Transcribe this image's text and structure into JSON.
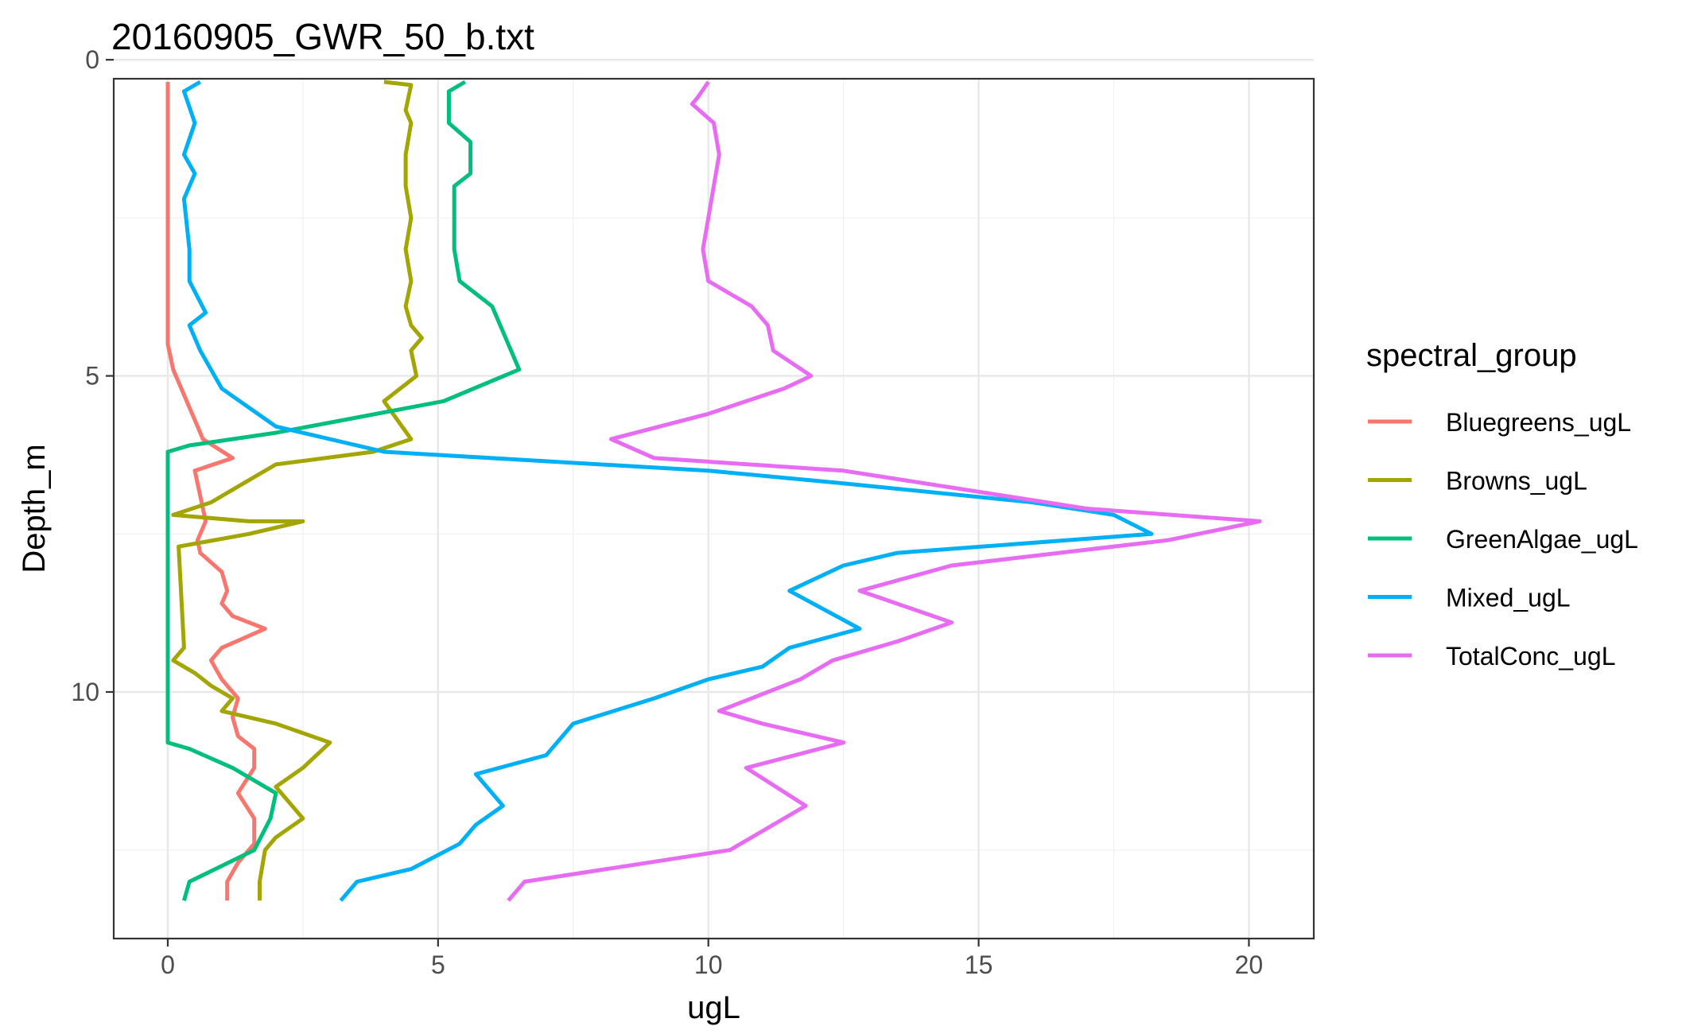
{
  "chart_data": {
    "type": "line",
    "title": "20160905_GWR_50_b.txt",
    "xlabel": "ugL",
    "ylabel": "Depth_m",
    "xlim": [
      -1,
      21.2
    ],
    "ylim": [
      0.3,
      13.9
    ],
    "y_reversed": true,
    "x_ticks": [
      0,
      5,
      10,
      15,
      20
    ],
    "y_ticks": [
      0,
      5,
      10
    ],
    "grid": true,
    "legend": {
      "title": "spectral_group",
      "placement": "right"
    },
    "series": [
      {
        "name": "Bluegreens_ugL",
        "color": "#F8766D",
        "points": [
          [
            0,
            0.35
          ],
          [
            0,
            1.5
          ],
          [
            0,
            3.0
          ],
          [
            0,
            4.5
          ],
          [
            0.1,
            4.9
          ],
          [
            0.3,
            5.3
          ],
          [
            0.5,
            5.7
          ],
          [
            0.65,
            6.0
          ],
          [
            1.2,
            6.3
          ],
          [
            0.5,
            6.5
          ],
          [
            0.6,
            6.9
          ],
          [
            0.7,
            7.3
          ],
          [
            0.55,
            7.6
          ],
          [
            0.6,
            7.8
          ],
          [
            1.0,
            8.1
          ],
          [
            1.1,
            8.4
          ],
          [
            1.0,
            8.6
          ],
          [
            1.2,
            8.8
          ],
          [
            1.8,
            9.0
          ],
          [
            1.0,
            9.3
          ],
          [
            0.8,
            9.5
          ],
          [
            1.0,
            9.8
          ],
          [
            1.3,
            10.1
          ],
          [
            1.2,
            10.4
          ],
          [
            1.3,
            10.7
          ],
          [
            1.6,
            10.9
          ],
          [
            1.6,
            11.2
          ],
          [
            1.3,
            11.6
          ],
          [
            1.6,
            12.0
          ],
          [
            1.6,
            12.4
          ],
          [
            1.3,
            12.7
          ],
          [
            1.1,
            13.0
          ],
          [
            1.1,
            13.3
          ]
        ]
      },
      {
        "name": "Browns_ugL",
        "color": "#A3A500",
        "points": [
          [
            4.0,
            0.35
          ],
          [
            4.5,
            0.4
          ],
          [
            4.4,
            0.8
          ],
          [
            4.5,
            1.0
          ],
          [
            4.4,
            1.5
          ],
          [
            4.4,
            2.0
          ],
          [
            4.5,
            2.5
          ],
          [
            4.4,
            3.0
          ],
          [
            4.5,
            3.5
          ],
          [
            4.4,
            3.9
          ],
          [
            4.5,
            4.2
          ],
          [
            4.7,
            4.4
          ],
          [
            4.5,
            4.6
          ],
          [
            4.6,
            5.0
          ],
          [
            4.0,
            5.4
          ],
          [
            4.5,
            6.0
          ],
          [
            3.8,
            6.2
          ],
          [
            2.0,
            6.4
          ],
          [
            1.2,
            6.8
          ],
          [
            0.8,
            7.0
          ],
          [
            0.1,
            7.2
          ],
          [
            1.5,
            7.3
          ],
          [
            2.5,
            7.3
          ],
          [
            1.5,
            7.5
          ],
          [
            0.2,
            7.7
          ],
          [
            0.3,
            9.3
          ],
          [
            0.1,
            9.5
          ],
          [
            0.5,
            9.7
          ],
          [
            0.8,
            9.9
          ],
          [
            1.2,
            10.1
          ],
          [
            1.0,
            10.3
          ],
          [
            2.0,
            10.5
          ],
          [
            3.0,
            10.8
          ],
          [
            2.5,
            11.2
          ],
          [
            2.0,
            11.5
          ],
          [
            2.5,
            12.0
          ],
          [
            2.0,
            12.3
          ],
          [
            1.8,
            12.5
          ],
          [
            1.7,
            13.0
          ],
          [
            1.7,
            13.3
          ]
        ]
      },
      {
        "name": "GreenAlgae_ugL",
        "color": "#00BF7D",
        "points": [
          [
            5.5,
            0.35
          ],
          [
            5.2,
            0.5
          ],
          [
            5.2,
            1.0
          ],
          [
            5.6,
            1.3
          ],
          [
            5.6,
            1.8
          ],
          [
            5.3,
            2.0
          ],
          [
            5.3,
            2.5
          ],
          [
            5.3,
            3.0
          ],
          [
            5.4,
            3.5
          ],
          [
            6.0,
            3.9
          ],
          [
            6.2,
            4.3
          ],
          [
            6.5,
            4.9
          ],
          [
            5.1,
            5.4
          ],
          [
            2.0,
            5.9
          ],
          [
            0.4,
            6.1
          ],
          [
            0,
            6.2
          ],
          [
            0,
            7.0
          ],
          [
            0,
            9.0
          ],
          [
            0,
            10.8
          ],
          [
            0.4,
            10.9
          ],
          [
            1.2,
            11.2
          ],
          [
            2.0,
            11.6
          ],
          [
            1.9,
            12.0
          ],
          [
            1.6,
            12.5
          ],
          [
            0.4,
            13.0
          ],
          [
            0.3,
            13.3
          ]
        ]
      },
      {
        "name": "Mixed_ugL",
        "color": "#00B0F6",
        "points": [
          [
            0.6,
            0.35
          ],
          [
            0.3,
            0.5
          ],
          [
            0.5,
            1.0
          ],
          [
            0.3,
            1.5
          ],
          [
            0.5,
            1.8
          ],
          [
            0.3,
            2.2
          ],
          [
            0.4,
            3.0
          ],
          [
            0.4,
            3.5
          ],
          [
            0.7,
            4.0
          ],
          [
            0.4,
            4.2
          ],
          [
            0.6,
            4.6
          ],
          [
            1.0,
            5.2
          ],
          [
            2.0,
            5.8
          ],
          [
            4.0,
            6.2
          ],
          [
            10.0,
            6.5
          ],
          [
            12.5,
            6.7
          ],
          [
            16.0,
            7.0
          ],
          [
            17.5,
            7.2
          ],
          [
            18.2,
            7.5
          ],
          [
            13.5,
            7.8
          ],
          [
            12.5,
            8.0
          ],
          [
            11.5,
            8.4
          ],
          [
            12.8,
            9.0
          ],
          [
            11.5,
            9.3
          ],
          [
            11.0,
            9.6
          ],
          [
            10.0,
            9.8
          ],
          [
            9.0,
            10.1
          ],
          [
            7.5,
            10.5
          ],
          [
            7.0,
            11.0
          ],
          [
            5.7,
            11.3
          ],
          [
            6.2,
            11.8
          ],
          [
            5.7,
            12.1
          ],
          [
            5.4,
            12.4
          ],
          [
            4.5,
            12.8
          ],
          [
            3.5,
            13.0
          ],
          [
            3.2,
            13.3
          ]
        ]
      },
      {
        "name": "TotalConc_ugL",
        "color": "#E76BF3",
        "points": [
          [
            10.0,
            0.35
          ],
          [
            9.8,
            0.6
          ],
          [
            9.7,
            0.7
          ],
          [
            10.1,
            1.0
          ],
          [
            10.2,
            1.5
          ],
          [
            10.1,
            2.0
          ],
          [
            10.0,
            2.5
          ],
          [
            9.9,
            3.0
          ],
          [
            10.0,
            3.5
          ],
          [
            10.8,
            3.9
          ],
          [
            11.1,
            4.2
          ],
          [
            11.2,
            4.6
          ],
          [
            11.9,
            5.0
          ],
          [
            11.4,
            5.2
          ],
          [
            10.0,
            5.6
          ],
          [
            8.2,
            6.0
          ],
          [
            9.0,
            6.3
          ],
          [
            12.5,
            6.5
          ],
          [
            15.5,
            6.9
          ],
          [
            17.0,
            7.1
          ],
          [
            20.2,
            7.3
          ],
          [
            18.5,
            7.6
          ],
          [
            14.5,
            8.0
          ],
          [
            12.8,
            8.4
          ],
          [
            14.5,
            8.9
          ],
          [
            13.5,
            9.2
          ],
          [
            12.3,
            9.5
          ],
          [
            11.7,
            9.8
          ],
          [
            10.2,
            10.3
          ],
          [
            11.0,
            10.5
          ],
          [
            12.5,
            10.8
          ],
          [
            10.7,
            11.2
          ],
          [
            11.8,
            11.8
          ],
          [
            11.0,
            12.2
          ],
          [
            10.4,
            12.5
          ],
          [
            6.6,
            13.0
          ],
          [
            6.3,
            13.3
          ]
        ]
      }
    ]
  }
}
